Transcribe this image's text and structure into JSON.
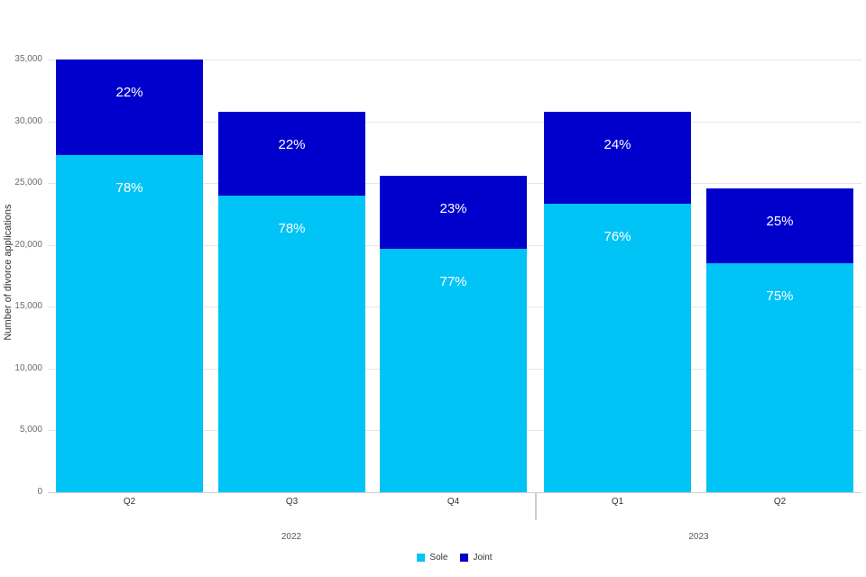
{
  "chart_data": {
    "type": "bar",
    "variant": "stacked-column",
    "title": "",
    "ylabel": "Number of divorce applications",
    "xlabel": "",
    "ylim": [
      0,
      35000
    ],
    "ytick_step": 5000,
    "ytick_labels": [
      "0",
      "5,000",
      "10,000",
      "15,000",
      "20,000",
      "25,000",
      "30,000",
      "35,000"
    ],
    "grid": true,
    "legend_position": "bottom-center",
    "categories": [
      "Q2",
      "Q3",
      "Q4",
      "Q1",
      "Q2"
    ],
    "year_groups": [
      {
        "label": "2022",
        "bar_indexes": [
          0,
          1,
          2
        ]
      },
      {
        "label": "2023",
        "bar_indexes": [
          3,
          4
        ]
      }
    ],
    "series": [
      {
        "name": "Sole",
        "color": "#00c4f5",
        "values": [
          27300,
          24000,
          19700,
          23300,
          18500
        ],
        "percent_labels": [
          "78%",
          "78%",
          "77%",
          "76%",
          "75%"
        ]
      },
      {
        "name": "Joint",
        "color": "#0000cd",
        "values": [
          7700,
          6800,
          5900,
          7500,
          6100
        ],
        "percent_labels": [
          "22%",
          "22%",
          "23%",
          "24%",
          "25%"
        ]
      }
    ]
  },
  "colors": {
    "sole": "#00c4f5",
    "joint": "#0000cd",
    "gridline": "#e6e6e6",
    "axis_line": "#cfcfcf",
    "bar_label_text": "#ffffff",
    "axis_text": "#6b6b6b",
    "category_text": "#333333"
  }
}
